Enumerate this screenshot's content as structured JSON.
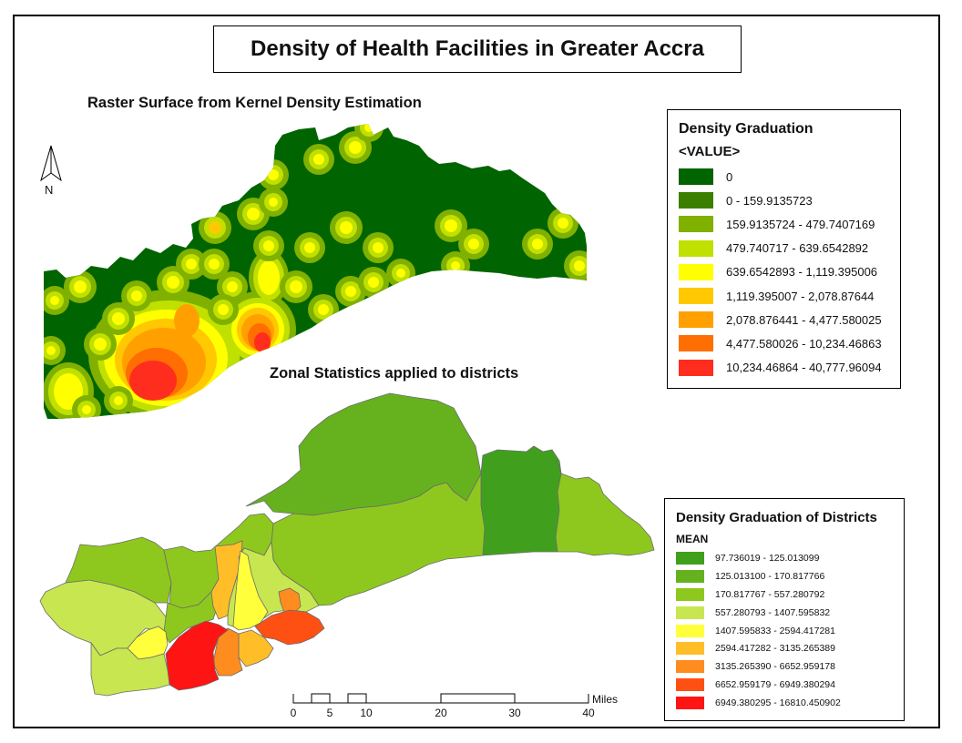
{
  "title": "Density of Health Facilities in Greater Accra",
  "subtitle_raster": "Raster Surface from Kernel Density Estimation",
  "subtitle_zonal": "Zonal Statistics applied to districts",
  "north_arrow": {
    "letter": "N",
    "icon": "north-arrow-icon"
  },
  "legend_raster": {
    "title": "Density Graduation",
    "field": "<VALUE>",
    "classes": [
      {
        "label": "0",
        "color": "#006400"
      },
      {
        "label": "0 - 159.9135723",
        "color": "#3a7f00"
      },
      {
        "label": "159.9135724 - 479.7407169",
        "color": "#80b000"
      },
      {
        "label": "479.740717 - 639.6542892",
        "color": "#c0e000"
      },
      {
        "label": "639.6542893 - 1,119.395006",
        "color": "#ffff00"
      },
      {
        "label": "1,119.395007 - 2,078.87644",
        "color": "#ffc800"
      },
      {
        "label": "2,078.876441 - 4,477.580025",
        "color": "#ffa000"
      },
      {
        "label": "4,477.580026 - 10,234.46863",
        "color": "#ff6e00"
      },
      {
        "label": "10,234.46864 - 40,777.96094",
        "color": "#ff2d1e"
      }
    ]
  },
  "legend_districts": {
    "title": "Density Graduation of Districts",
    "field": "MEAN",
    "classes": [
      {
        "label": "97.736019 - 125.013099",
        "color": "#40a01e"
      },
      {
        "label": "125.013100 - 170.817766",
        "color": "#66b21e"
      },
      {
        "label": "170.817767 - 557.280792",
        "color": "#8ec81e"
      },
      {
        "label": "557.280793 - 1407.595832",
        "color": "#c8e650"
      },
      {
        "label": "1407.595833 - 2594.417281",
        "color": "#ffff3c"
      },
      {
        "label": "2594.417282 - 3135.265389",
        "color": "#ffbe28"
      },
      {
        "label": "3135.265390 - 6652.959178",
        "color": "#ff8c1e"
      },
      {
        "label": "6652.959179 - 6949.380294",
        "color": "#ff5014"
      },
      {
        "label": "6949.380295 - 16810.450902",
        "color": "#ff1414"
      }
    ]
  },
  "scale_bar": {
    "units": "Miles",
    "ticks": [
      "0",
      "5",
      "10",
      "20",
      "30",
      "40"
    ]
  }
}
